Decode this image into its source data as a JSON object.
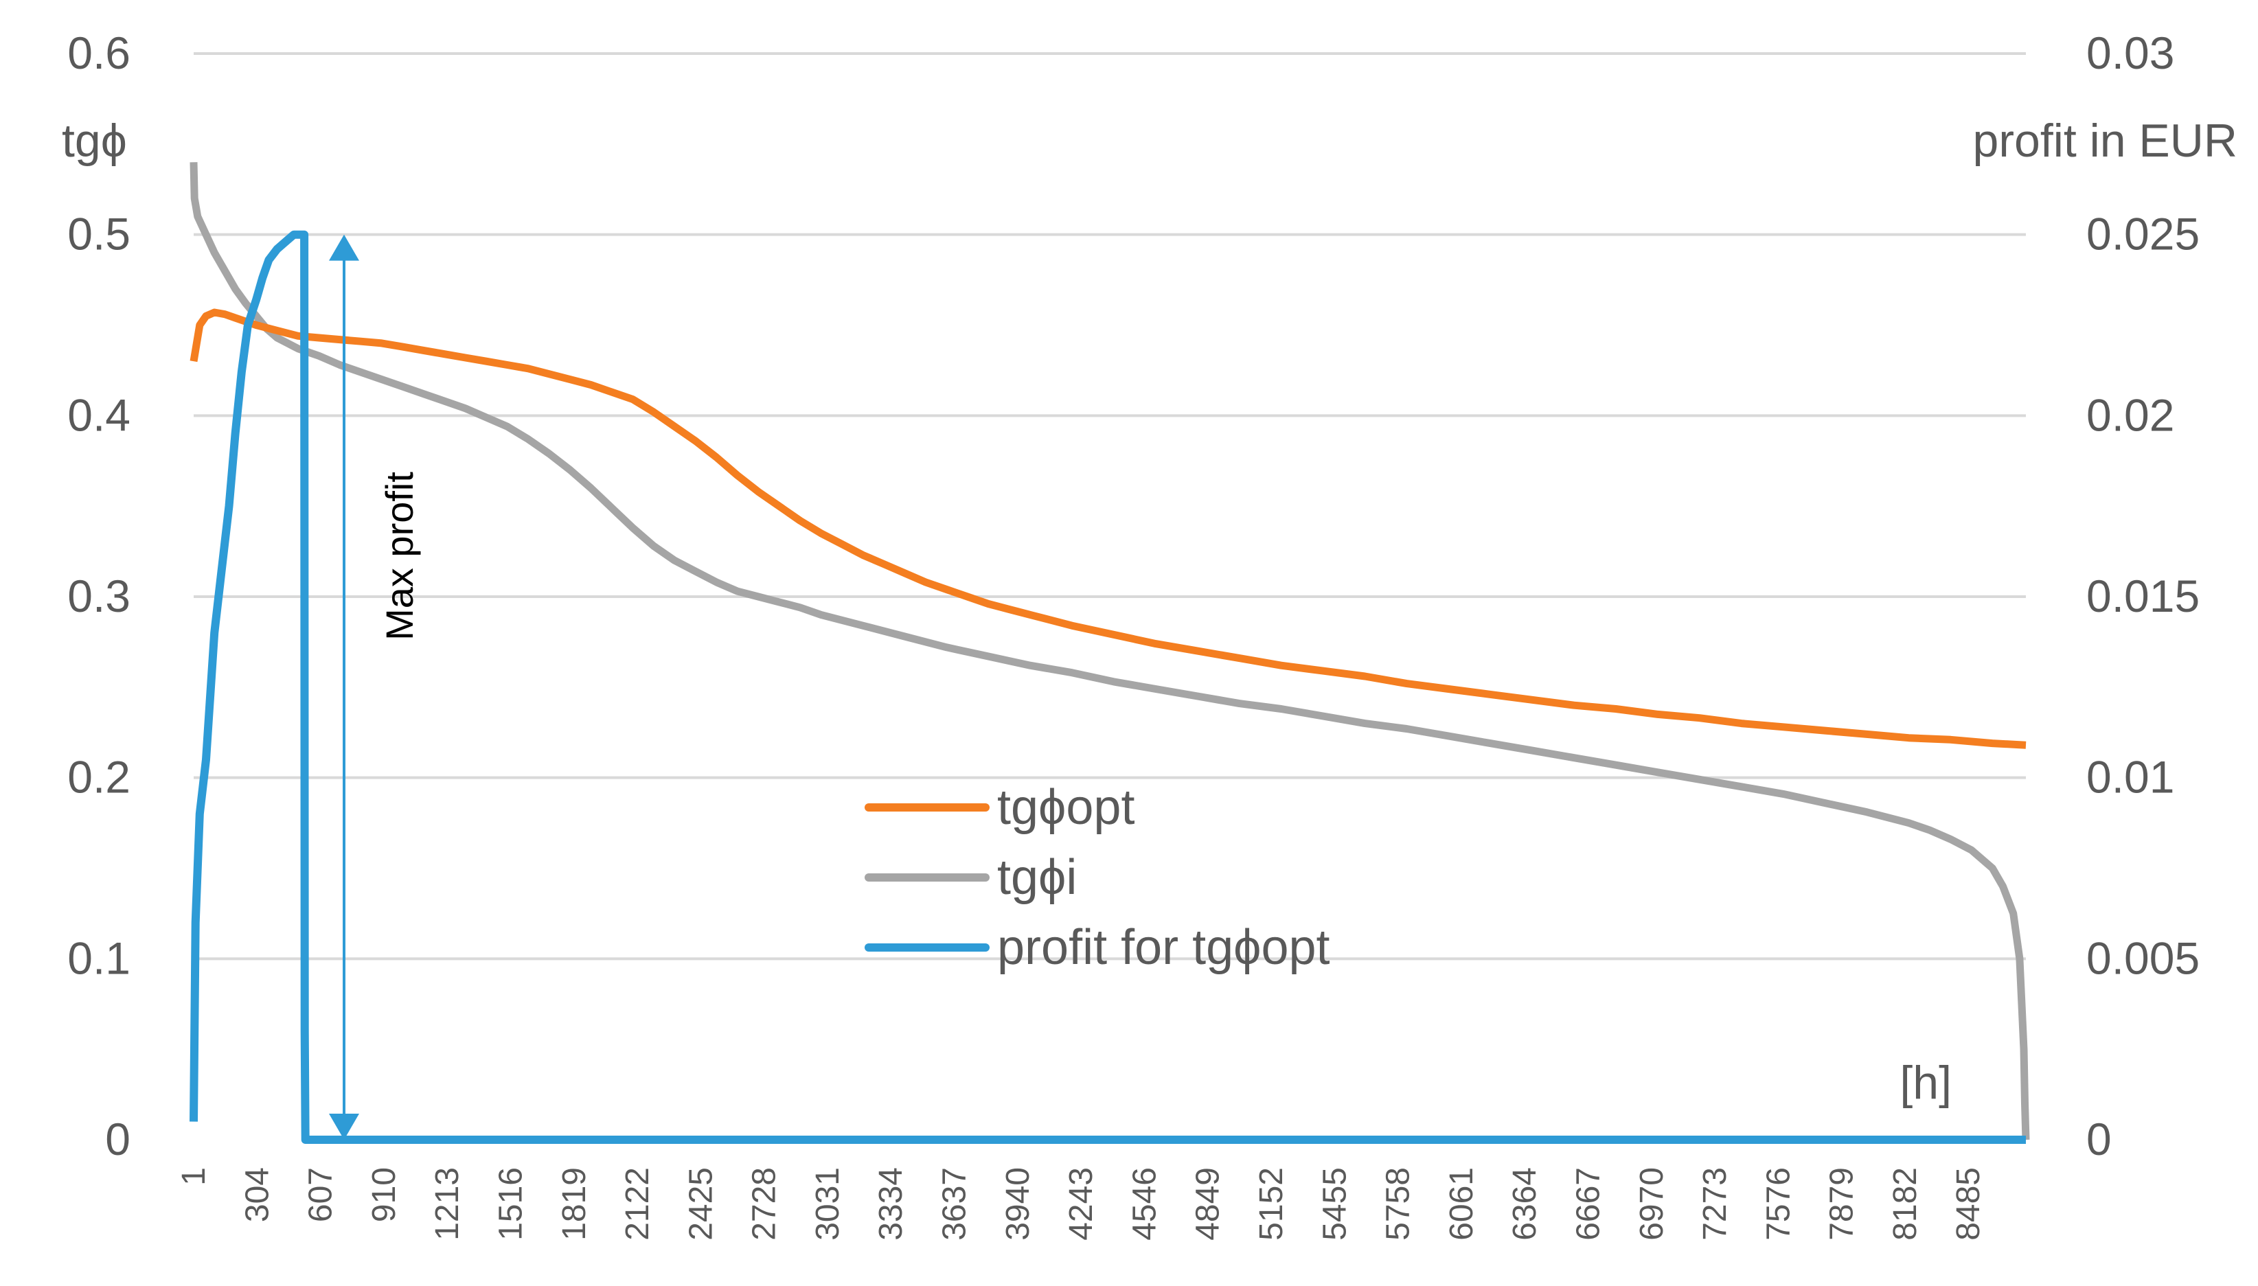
{
  "chart_data": {
    "type": "line",
    "title": "",
    "xlabel": "[h]",
    "ylabel_left": "tgϕ",
    "ylabel_right": "profit in EUR",
    "ylim_left": [
      0,
      0.6
    ],
    "ylim_right": [
      0,
      0.03
    ],
    "grid": true,
    "legend_position": "center",
    "x_range": [
      1,
      8760
    ],
    "x_tick_labels": [
      "1",
      "304",
      "607",
      "910",
      "1213",
      "1516",
      "1819",
      "2122",
      "2425",
      "2728",
      "3031",
      "3334",
      "3637",
      "3940",
      "4243",
      "4546",
      "4849",
      "5152",
      "5455",
      "5758",
      "6061",
      "6364",
      "6667",
      "6970",
      "7273",
      "7576",
      "7879",
      "8182",
      "8485"
    ],
    "y_left_tick_labels": [
      "0",
      "0.1",
      "0.2",
      "0.3",
      "0.4",
      "0.5",
      "0.6"
    ],
    "y_right_tick_labels": [
      "0",
      "0.005",
      "0.01",
      "0.015",
      "0.02",
      "0.025",
      "0.03"
    ],
    "series": [
      {
        "name": "tgϕopt",
        "axis": "left",
        "color": "#F47E20",
        "x": [
          1,
          30,
          60,
          100,
          150,
          200,
          300,
          400,
          500,
          600,
          700,
          800,
          900,
          1000,
          1100,
          1200,
          1300,
          1400,
          1500,
          1600,
          1700,
          1800,
          1900,
          2000,
          2100,
          2200,
          2300,
          2400,
          2500,
          2600,
          2700,
          2800,
          2900,
          3000,
          3100,
          3200,
          3300,
          3400,
          3500,
          3600,
          3700,
          3800,
          3900,
          4000,
          4200,
          4400,
          4600,
          4800,
          5000,
          5200,
          5400,
          5600,
          5800,
          6000,
          6200,
          6400,
          6600,
          6800,
          7000,
          7200,
          7400,
          7600,
          7800,
          8000,
          8200,
          8400,
          8600,
          8760
        ],
        "y": [
          0.43,
          0.45,
          0.455,
          0.457,
          0.456,
          0.454,
          0.45,
          0.447,
          0.444,
          0.443,
          0.442,
          0.441,
          0.44,
          0.438,
          0.436,
          0.434,
          0.432,
          0.43,
          0.428,
          0.426,
          0.423,
          0.42,
          0.417,
          0.413,
          0.409,
          0.402,
          0.394,
          0.386,
          0.377,
          0.367,
          0.358,
          0.35,
          0.342,
          0.335,
          0.329,
          0.323,
          0.318,
          0.313,
          0.308,
          0.304,
          0.3,
          0.296,
          0.293,
          0.29,
          0.284,
          0.279,
          0.274,
          0.27,
          0.266,
          0.262,
          0.259,
          0.256,
          0.252,
          0.249,
          0.246,
          0.243,
          0.24,
          0.238,
          0.235,
          0.233,
          0.23,
          0.228,
          0.226,
          0.224,
          0.222,
          0.221,
          0.219,
          0.218
        ]
      },
      {
        "name": "tgϕi",
        "axis": "left",
        "color": "#A5A5A5",
        "x": [
          1,
          5,
          20,
          60,
          100,
          150,
          200,
          250,
          300,
          350,
          400,
          450,
          500,
          550,
          600,
          700,
          800,
          900,
          1000,
          1100,
          1200,
          1300,
          1400,
          1500,
          1600,
          1700,
          1800,
          1900,
          2000,
          2100,
          2200,
          2300,
          2400,
          2500,
          2600,
          2700,
          2800,
          2900,
          3000,
          3200,
          3400,
          3600,
          3800,
          4000,
          4200,
          4400,
          4600,
          4800,
          5000,
          5200,
          5400,
          5600,
          5800,
          6000,
          6200,
          6400,
          6600,
          6800,
          7000,
          7200,
          7400,
          7600,
          7800,
          8000,
          8200,
          8300,
          8400,
          8500,
          8600,
          8650,
          8700,
          8730,
          8750,
          8755,
          8760
        ],
        "y": [
          0.54,
          0.52,
          0.51,
          0.5,
          0.49,
          0.48,
          0.47,
          0.462,
          0.455,
          0.448,
          0.443,
          0.44,
          0.437,
          0.435,
          0.433,
          0.428,
          0.424,
          0.42,
          0.416,
          0.412,
          0.408,
          0.404,
          0.399,
          0.394,
          0.387,
          0.379,
          0.37,
          0.36,
          0.349,
          0.338,
          0.328,
          0.32,
          0.314,
          0.308,
          0.303,
          0.3,
          0.297,
          0.294,
          0.29,
          0.284,
          0.278,
          0.272,
          0.267,
          0.262,
          0.258,
          0.253,
          0.249,
          0.245,
          0.241,
          0.238,
          0.234,
          0.23,
          0.227,
          0.223,
          0.219,
          0.215,
          0.211,
          0.207,
          0.203,
          0.199,
          0.195,
          0.191,
          0.186,
          0.181,
          0.175,
          0.171,
          0.166,
          0.16,
          0.15,
          0.14,
          0.125,
          0.1,
          0.05,
          0.02,
          0.0
        ]
      },
      {
        "name": "profit for tgϕopt",
        "axis": "right",
        "color": "#2E9BD6",
        "x": [
          1,
          10,
          30,
          60,
          100,
          130,
          170,
          200,
          230,
          260,
          300,
          330,
          360,
          400,
          440,
          480,
          500,
          520,
          530,
          532,
          535,
          8760
        ],
        "y": [
          0.0005,
          0.006,
          0.009,
          0.0105,
          0.014,
          0.0155,
          0.0175,
          0.0195,
          0.0212,
          0.0225,
          0.0232,
          0.0238,
          0.0243,
          0.0246,
          0.0248,
          0.025,
          0.025,
          0.025,
          0.025,
          0.003,
          0.0,
          0.0
        ]
      }
    ],
    "annotations": [
      {
        "text": "Max profit",
        "x": 720,
        "y_right_from": 0,
        "y_right_to": 0.025
      }
    ]
  }
}
